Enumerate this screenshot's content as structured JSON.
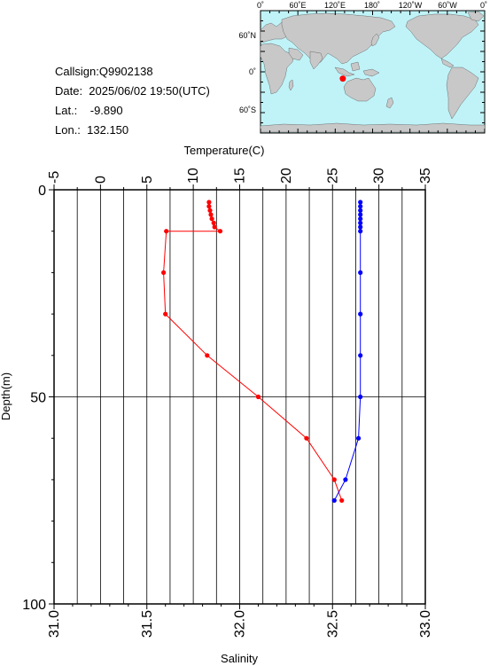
{
  "header": {
    "callsign": "Callsign:Q9902138",
    "date": "Date:  2025/06/02 19:50(UTC)",
    "lat": "Lat.:    -9.890",
    "lon": "Lon.:  132.150"
  },
  "map": {
    "lon_ticks": [
      "0˚",
      "60˚E",
      "120˚E",
      "180˚",
      "120˚W",
      "60˚W",
      "0˚"
    ],
    "lat_ticks": [
      "60˚N",
      "0˚",
      "60˚S"
    ],
    "ocean_color": "#bff3f8",
    "land_color": "#c8c8c8",
    "marker_color": "#ff0000",
    "marker_lat": -9.89,
    "marker_lon": 132.15
  },
  "chart_data": {
    "type": "line",
    "top_axis_label": "Temperature(C)",
    "bottom_axis_label": "Salinity",
    "left_axis_label": "Depth(m)",
    "temperature_ticks": [
      "-5",
      "0",
      "5",
      "10",
      "15",
      "20",
      "25",
      "30",
      "35"
    ],
    "salinity_ticks": [
      "31.0",
      "31.5",
      "32.0",
      "32.5",
      "33.0"
    ],
    "depth_ticks": [
      "0",
      "50",
      "100"
    ],
    "temperature_range": [
      -5,
      35
    ],
    "salinity_range": [
      31.0,
      33.0
    ],
    "depth_range": [
      0,
      100
    ],
    "grid": true,
    "series": [
      {
        "color": "#ff0000",
        "axis": "temperature",
        "points": [
          {
            "depth": 3,
            "value": 11.7
          },
          {
            "depth": 4,
            "value": 11.7
          },
          {
            "depth": 5,
            "value": 11.8
          },
          {
            "depth": 6,
            "value": 11.9
          },
          {
            "depth": 7,
            "value": 12.0
          },
          {
            "depth": 8,
            "value": 12.2
          },
          {
            "depth": 9,
            "value": 12.3
          },
          {
            "depth": 10,
            "value": 12.9
          },
          {
            "depth": 10,
            "value": 7.1
          },
          {
            "depth": 20,
            "value": 6.8
          },
          {
            "depth": 30,
            "value": 7.0
          },
          {
            "depth": 40,
            "value": 11.5
          },
          {
            "depth": 50,
            "value": 17.0
          },
          {
            "depth": 60,
            "value": 22.2
          },
          {
            "depth": 70,
            "value": 25.2
          },
          {
            "depth": 75,
            "value": 26.0
          }
        ]
      },
      {
        "color": "#0000ff",
        "axis": "salinity",
        "points": [
          {
            "depth": 3,
            "value": 32.65
          },
          {
            "depth": 4,
            "value": 32.65
          },
          {
            "depth": 5,
            "value": 32.65
          },
          {
            "depth": 6,
            "value": 32.65
          },
          {
            "depth": 7,
            "value": 32.65
          },
          {
            "depth": 8,
            "value": 32.65
          },
          {
            "depth": 9,
            "value": 32.65
          },
          {
            "depth": 10,
            "value": 32.65
          },
          {
            "depth": 20,
            "value": 32.65
          },
          {
            "depth": 30,
            "value": 32.65
          },
          {
            "depth": 40,
            "value": 32.65
          },
          {
            "depth": 50,
            "value": 32.65
          },
          {
            "depth": 60,
            "value": 32.64
          },
          {
            "depth": 70,
            "value": 32.57
          },
          {
            "depth": 75,
            "value": 32.51
          }
        ]
      }
    ]
  }
}
